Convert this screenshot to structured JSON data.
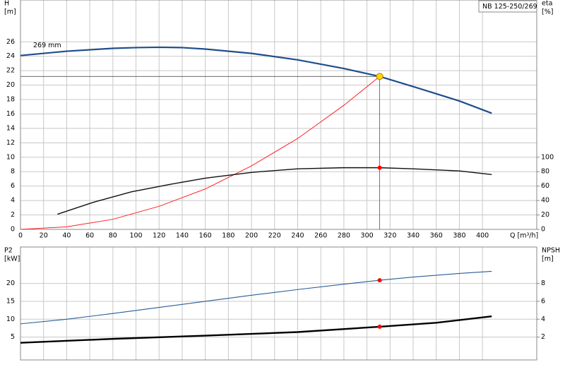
{
  "chart_data": [
    {
      "type": "line",
      "title": "NB 125-250/269",
      "ylabel": [
        "H",
        "[m]"
      ],
      "y2label": [
        "eta",
        "[%]"
      ],
      "xlabel": "Q [m³/h]",
      "xlim": [
        0,
        447
      ],
      "xticks": [
        0,
        20,
        40,
        60,
        80,
        100,
        120,
        140,
        160,
        180,
        200,
        220,
        240,
        260,
        280,
        300,
        320,
        340,
        360,
        380,
        400
      ],
      "ylim": [
        0,
        31.8
      ],
      "yticks": [
        0,
        2,
        4,
        6,
        8,
        10,
        12,
        14,
        16,
        18,
        20,
        22,
        24,
        26
      ],
      "y2lim": [
        0,
        318
      ],
      "y2ticks": [
        0,
        20,
        40,
        60,
        80,
        100
      ],
      "grid": true,
      "crosshair": true,
      "series": [
        {
          "name": "269 mm",
          "color": "#1f4e8c",
          "width": 2.2,
          "x": [
            0,
            40,
            80,
            100,
            120,
            140,
            160,
            200,
            240,
            280,
            311,
            340,
            380,
            408
          ],
          "values": [
            24.1,
            24.7,
            25.1,
            25.2,
            25.25,
            25.2,
            25.0,
            24.4,
            23.5,
            22.3,
            21.2,
            19.8,
            17.8,
            16.1
          ]
        },
        {
          "color": "#ff2020",
          "width": 1,
          "x": [
            0,
            40,
            80,
            120,
            160,
            200,
            240,
            280,
            311
          ],
          "values": [
            0,
            0.35,
            1.4,
            3.2,
            5.6,
            8.8,
            12.6,
            17.2,
            21.2
          ]
        },
        {
          "color": "#111111",
          "width": 1.4,
          "axis": "y2",
          "x": [
            32,
            64,
            96,
            128,
            160,
            200,
            240,
            280,
            311,
            340,
            380,
            408
          ],
          "values": [
            21,
            38,
            52,
            62,
            71,
            79,
            84,
            85.5,
            85.5,
            84,
            81,
            76
          ]
        }
      ],
      "markers": [
        {
          "x": 311,
          "y": 21.2,
          "color": "#ffd700"
        },
        {
          "x": 311,
          "y": 85.5,
          "color": "#ff0000",
          "axis": "y2"
        }
      ]
    },
    {
      "type": "line",
      "ylabel": [
        "P2",
        "[kW]"
      ],
      "y2label": [
        "NPSH",
        "[m]"
      ],
      "xlim": [
        0,
        447
      ],
      "ylim": [
        -1.4,
        30.2
      ],
      "yticks": [
        5,
        10,
        15,
        20
      ],
      "y2lim": [
        -0.56,
        12.08
      ],
      "y2ticks": [
        2,
        4,
        6,
        8
      ],
      "grid": true,
      "series": [
        {
          "color": "#2a5c9a",
          "width": 1.1,
          "x": [
            0,
            40,
            80,
            120,
            160,
            200,
            240,
            280,
            311,
            340,
            380,
            408
          ],
          "values": [
            8.7,
            10.0,
            11.6,
            13.3,
            15.0,
            16.7,
            18.3,
            19.8,
            20.9,
            21.8,
            22.8,
            23.4
          ]
        },
        {
          "color": "#000000",
          "width": 2.4,
          "axis": "y2",
          "x": [
            0,
            80,
            160,
            240,
            311,
            360,
            408
          ],
          "values": [
            1.36,
            1.8,
            2.16,
            2.56,
            3.16,
            3.6,
            4.32
          ]
        }
      ],
      "markers": [
        {
          "x": 311,
          "y": 20.9,
          "color": "#ff0000"
        },
        {
          "x": 311,
          "y": 3.16,
          "color": "#ff0000",
          "axis": "y2"
        }
      ]
    }
  ]
}
